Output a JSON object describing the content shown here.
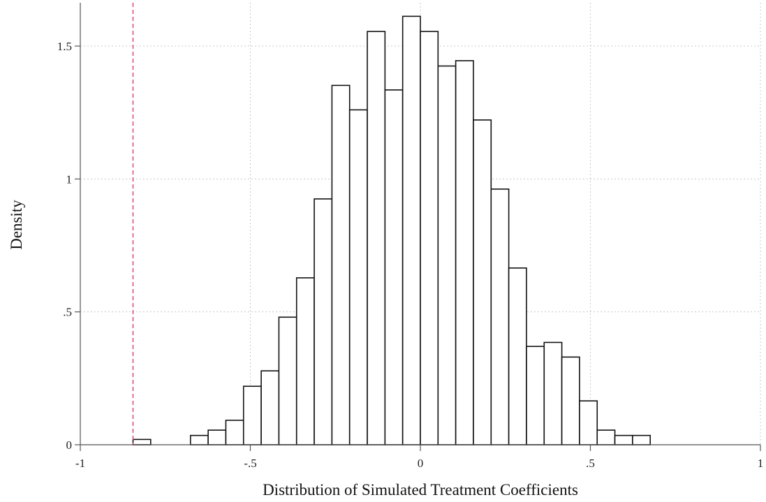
{
  "chart_data": {
    "type": "bar",
    "title": "",
    "xlabel": "Distribution of Simulated Treatment Coefficients",
    "ylabel": "Density",
    "xlim": [
      -1,
      1
    ],
    "ylim": [
      0,
      1.62
    ],
    "grid": true,
    "x_ticks": [
      -1,
      -0.5,
      0,
      0.5,
      1
    ],
    "x_tick_labels": [
      "-1",
      "-.5",
      "0",
      ".5",
      "1"
    ],
    "y_ticks": [
      0,
      0.5,
      1,
      1.5
    ],
    "y_tick_labels": [
      "0",
      ".5",
      "1",
      "1.5"
    ],
    "bin_width": 0.052,
    "bins": [
      {
        "x_start": -0.845,
        "x_end": -0.793,
        "density": 0.02
      },
      {
        "x_start": -0.676,
        "x_end": -0.624,
        "density": 0.035
      },
      {
        "x_start": -0.624,
        "x_end": -0.572,
        "density": 0.055
      },
      {
        "x_start": -0.572,
        "x_end": -0.52,
        "density": 0.092
      },
      {
        "x_start": -0.52,
        "x_end": -0.468,
        "density": 0.22
      },
      {
        "x_start": -0.468,
        "x_end": -0.416,
        "density": 0.278
      },
      {
        "x_start": -0.416,
        "x_end": -0.364,
        "density": 0.48
      },
      {
        "x_start": -0.364,
        "x_end": -0.312,
        "density": 0.628
      },
      {
        "x_start": -0.312,
        "x_end": -0.26,
        "density": 0.925
      },
      {
        "x_start": -0.26,
        "x_end": -0.208,
        "density": 1.352
      },
      {
        "x_start": -0.208,
        "x_end": -0.156,
        "density": 1.26
      },
      {
        "x_start": -0.156,
        "x_end": -0.104,
        "density": 1.555
      },
      {
        "x_start": -0.104,
        "x_end": -0.052,
        "density": 1.335
      },
      {
        "x_start": -0.052,
        "x_end": 0.0,
        "density": 1.612
      },
      {
        "x_start": 0.0,
        "x_end": 0.052,
        "density": 1.555
      },
      {
        "x_start": 0.052,
        "x_end": 0.104,
        "density": 1.425
      },
      {
        "x_start": 0.104,
        "x_end": 0.156,
        "density": 1.445
      },
      {
        "x_start": 0.156,
        "x_end": 0.208,
        "density": 1.222
      },
      {
        "x_start": 0.208,
        "x_end": 0.26,
        "density": 0.962
      },
      {
        "x_start": 0.26,
        "x_end": 0.312,
        "density": 0.665
      },
      {
        "x_start": 0.312,
        "x_end": 0.364,
        "density": 0.37
      },
      {
        "x_start": 0.364,
        "x_end": 0.416,
        "density": 0.385
      },
      {
        "x_start": 0.416,
        "x_end": 0.468,
        "density": 0.33
      },
      {
        "x_start": 0.468,
        "x_end": 0.52,
        "density": 0.165
      },
      {
        "x_start": 0.52,
        "x_end": 0.572,
        "density": 0.055
      },
      {
        "x_start": 0.572,
        "x_end": 0.624,
        "density": 0.035
      },
      {
        "x_start": 0.624,
        "x_end": 0.676,
        "density": 0.035
      }
    ],
    "reference_line": {
      "x": -0.845,
      "style": "dashed",
      "color": "#d6527e"
    }
  }
}
